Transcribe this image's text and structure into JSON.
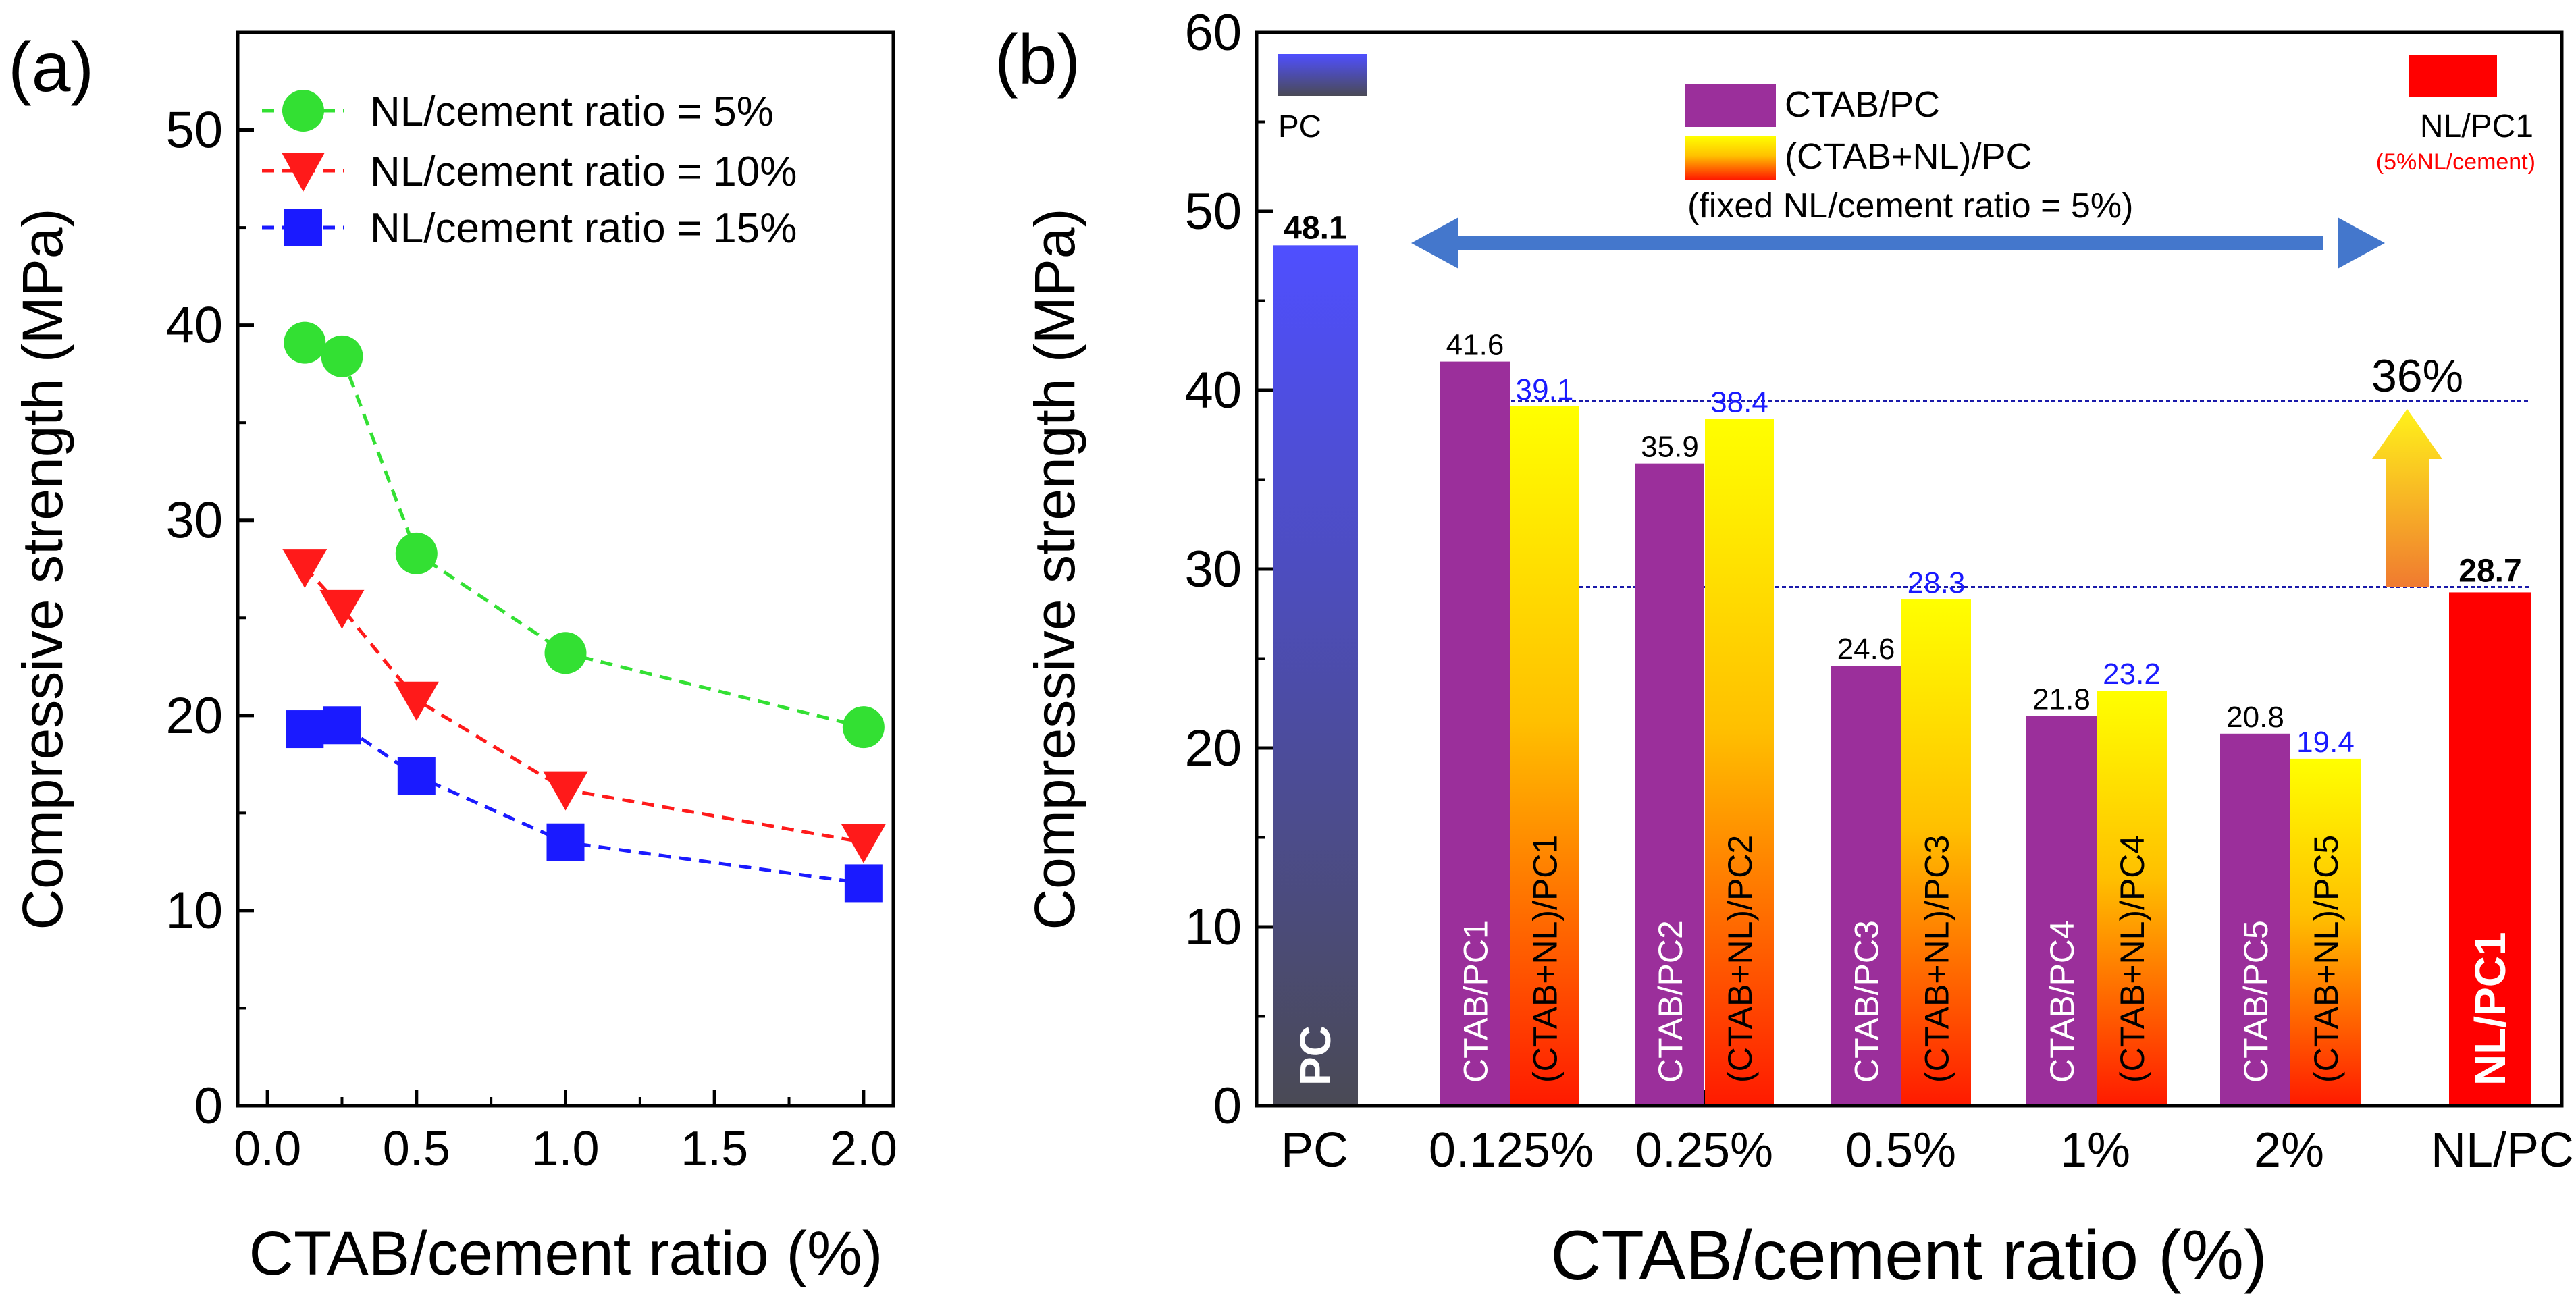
{
  "chart_data": [
    {
      "type": "line",
      "panel_label": "(a)",
      "xlabel": "CTAB/cement ratio (%)",
      "ylabel": "Compressive strength (MPa)",
      "xlim": [
        -0.1,
        2.1
      ],
      "ylim": [
        0,
        55
      ],
      "xticks": [
        0.0,
        0.5,
        1.0,
        1.5,
        2.0
      ],
      "xtick_labels": [
        "0.0",
        "0.5",
        "1.0",
        "1.5",
        "2.0"
      ],
      "yticks": [
        0,
        10,
        20,
        30,
        40,
        50
      ],
      "ytick_labels": [
        "0",
        "10",
        "20",
        "30",
        "40",
        "50"
      ],
      "x": [
        0.125,
        0.25,
        0.5,
        1.0,
        2.0
      ],
      "series": [
        {
          "name": "NL/cement ratio = 5%",
          "color": "#33e033",
          "marker": "circle",
          "values": [
            39.1,
            38.4,
            28.3,
            23.2,
            19.4
          ]
        },
        {
          "name": "NL/cement ratio = 10%",
          "color": "#ff1a1a",
          "marker": "triangle-down",
          "values": [
            27.6,
            25.5,
            20.8,
            16.2,
            13.5
          ]
        },
        {
          "name": "NL/cement ratio = 15%",
          "color": "#1a1aff",
          "marker": "square",
          "values": [
            19.3,
            19.5,
            16.9,
            13.5,
            11.4
          ]
        }
      ],
      "legend": "top-right"
    },
    {
      "type": "bar",
      "panel_label": "(b)",
      "xlabel": "CTAB/cement ratio (%)",
      "ylabel": "Compressive strength (MPa)",
      "ylim": [
        0,
        60
      ],
      "yticks": [
        0,
        10,
        20,
        30,
        40,
        50,
        60
      ],
      "ytick_labels": [
        "0",
        "10",
        "20",
        "30",
        "40",
        "50",
        "60"
      ],
      "categories": [
        "PC",
        "0.125%",
        "0.25%",
        "0.5%",
        "1%",
        "2%",
        "NL/PC"
      ],
      "bars": [
        {
          "category": "PC",
          "label": "PC",
          "value": 48.1,
          "value_text": "48.1",
          "style": "pc"
        },
        {
          "category": "0.125%",
          "label": "CTAB/PC1",
          "value": 41.6,
          "value_text": "41.6",
          "style": "ctab"
        },
        {
          "category": "0.125%",
          "label": "(CTAB+NL)/PC1",
          "value": 39.1,
          "value_text": "39.1",
          "style": "ctabnl"
        },
        {
          "category": "0.25%",
          "label": "CTAB/PC2",
          "value": 35.9,
          "value_text": "35.9",
          "style": "ctab"
        },
        {
          "category": "0.25%",
          "label": "(CTAB+NL)/PC2",
          "value": 38.4,
          "value_text": "38.4",
          "style": "ctabnl"
        },
        {
          "category": "0.5%",
          "label": "CTAB/PC3",
          "value": 24.6,
          "value_text": "24.6",
          "style": "ctab"
        },
        {
          "category": "0.5%",
          "label": "(CTAB+NL)/PC3",
          "value": 28.3,
          "value_text": "28.3",
          "style": "ctabnl"
        },
        {
          "category": "1%",
          "label": "CTAB/PC4",
          "value": 21.8,
          "value_text": "21.8",
          "style": "ctab"
        },
        {
          "category": "1%",
          "label": "(CTAB+NL)/PC4",
          "value": 23.2,
          "value_text": "23.2",
          "style": "ctabnl"
        },
        {
          "category": "2%",
          "label": "CTAB/PC5",
          "value": 20.8,
          "value_text": "20.8",
          "style": "ctab"
        },
        {
          "category": "2%",
          "label": "(CTAB+NL)/PC5",
          "value": 19.4,
          "value_text": "19.4",
          "style": "ctabnl"
        },
        {
          "category": "NL/PC",
          "label": "NL/PC1",
          "value": 28.7,
          "value_text": "28.7",
          "style": "nlpc"
        }
      ],
      "legend": {
        "pc": "PC",
        "ctab": "CTAB/PC",
        "ctabnl": "(CTAB+NL)/PC",
        "ctabnl_note": "(fixed NL/cement ratio = 5%)",
        "nlpc": "NL/PC1",
        "nlpc_note": "(5%NL/cement)"
      },
      "annotation_percent": "36%",
      "reference_lines": [
        39.4,
        29.0
      ],
      "colors": {
        "pc_top": "#4f4fff",
        "pc_bottom": "#4a4a55",
        "ctab": "#9b2f9b",
        "ctabnl_top": "#ffff00",
        "ctabnl_bottom": "#ff1a00",
        "nlpc": "#ff0000",
        "arrow": "#4477cc",
        "blue_label": "#1a1aff",
        "ref_line": "#1a1aaa"
      }
    }
  ]
}
